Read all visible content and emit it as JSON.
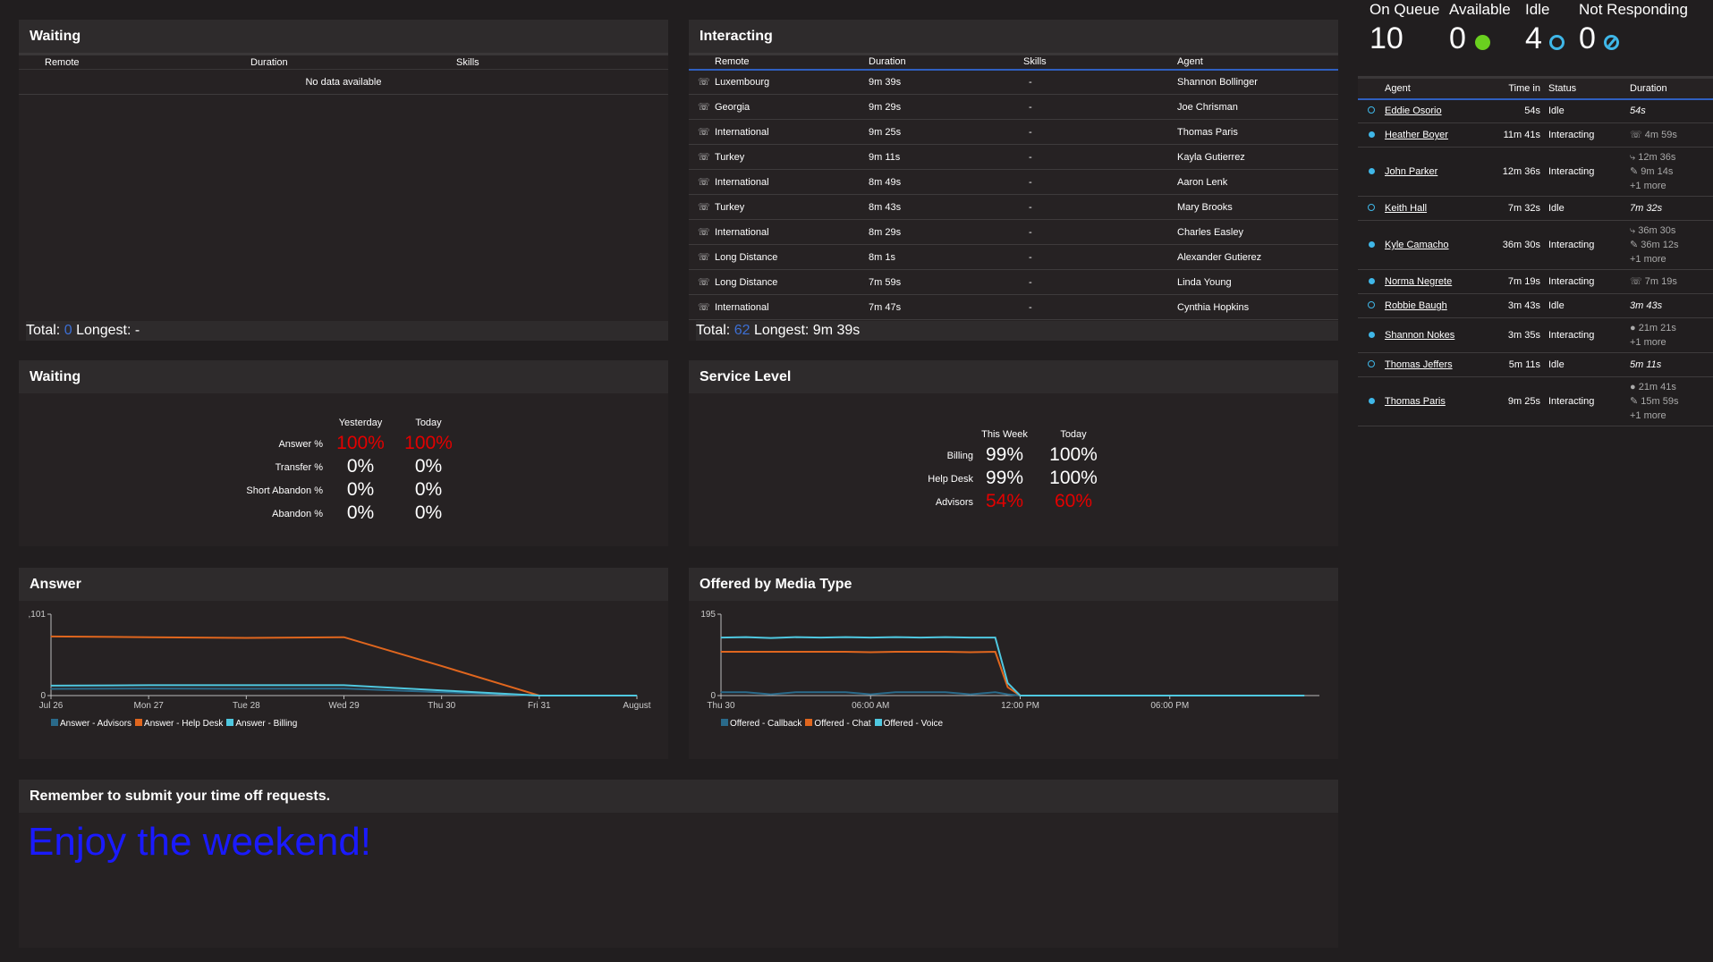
{
  "summary": {
    "on_queue_label": "On Queue",
    "on_queue": "10",
    "available_label": "Available",
    "available": "0",
    "idle_label": "Idle",
    "idle": "4",
    "not_responding_label": "Not Responding",
    "not_responding": "0",
    "colors": {
      "available": "#6ad01f",
      "idle": "#3fb7e8"
    }
  },
  "waiting": {
    "title": "Waiting",
    "columns": [
      "Remote",
      "Duration",
      "Skills"
    ],
    "empty": "No data available",
    "total_label": "Total:",
    "total": "0",
    "longest_label": "Longest:",
    "longest": "-"
  },
  "interacting": {
    "title": "Interacting",
    "columns": [
      "Remote",
      "Duration",
      "Skills",
      "Agent"
    ],
    "rows": [
      {
        "remote": "Luxembourg",
        "duration": "9m 39s",
        "skills": "-",
        "agent": "Shannon Bollinger"
      },
      {
        "remote": "Georgia",
        "duration": "9m 29s",
        "skills": "-",
        "agent": "Joe Chrisman"
      },
      {
        "remote": "International",
        "duration": "9m 25s",
        "skills": "-",
        "agent": "Thomas Paris"
      },
      {
        "remote": "Turkey",
        "duration": "9m 11s",
        "skills": "-",
        "agent": "Kayla Gutierrez"
      },
      {
        "remote": "International",
        "duration": "8m 49s",
        "skills": "-",
        "agent": "Aaron Lenk"
      },
      {
        "remote": "Turkey",
        "duration": "8m 43s",
        "skills": "-",
        "agent": "Mary Brooks"
      },
      {
        "remote": "International",
        "duration": "8m 29s",
        "skills": "-",
        "agent": "Charles Easley"
      },
      {
        "remote": "Long Distance",
        "duration": "8m 1s",
        "skills": "-",
        "agent": "Alexander Gutierez"
      },
      {
        "remote": "Long Distance",
        "duration": "7m 59s",
        "skills": "-",
        "agent": "Linda Young"
      },
      {
        "remote": "International",
        "duration": "7m 47s",
        "skills": "-",
        "agent": "Cynthia Hopkins"
      }
    ],
    "total_label": "Total:",
    "total": "62",
    "longest_label": "Longest:",
    "longest": "9m 39s"
  },
  "waiting_stats": {
    "title": "Waiting",
    "columns": [
      "Yesterday",
      "Today"
    ],
    "rows": [
      {
        "label": "Answer %",
        "yesterday": "100%",
        "today": "100%",
        "alert": true
      },
      {
        "label": "Transfer %",
        "yesterday": "0%",
        "today": "0%",
        "alert": false
      },
      {
        "label": "Short Abandon %",
        "yesterday": "0%",
        "today": "0%",
        "alert": false
      },
      {
        "label": "Abandon %",
        "yesterday": "0%",
        "today": "0%",
        "alert": false
      }
    ]
  },
  "service_level": {
    "title": "Service Level",
    "columns": [
      "This Week",
      "Today"
    ],
    "rows": [
      {
        "label": "Billing",
        "week": "99%",
        "today": "100%",
        "alert": false
      },
      {
        "label": "Help Desk",
        "week": "99%",
        "today": "100%",
        "alert": false
      },
      {
        "label": "Advisors",
        "week": "54%",
        "today": "60%",
        "alert": true
      }
    ]
  },
  "agents": {
    "columns": [
      "Agent",
      "Time in",
      "Status",
      "Duration"
    ],
    "rows": [
      {
        "name": "Eddie Osorio",
        "time": "54s",
        "status": "Idle",
        "durations": [
          "54s"
        ]
      },
      {
        "name": "Heather Boyer",
        "time": "11m 41s",
        "status": "Interacting",
        "durations": [
          "☏ 4m 59s"
        ]
      },
      {
        "name": "John Parker",
        "time": "12m 36s",
        "status": "Interacting",
        "durations": [
          "⤷ 12m 36s",
          "✎ 9m 14s",
          "+1 more"
        ]
      },
      {
        "name": "Keith Hall",
        "time": "7m 32s",
        "status": "Idle",
        "durations": [
          "7m 32s"
        ]
      },
      {
        "name": "Kyle Camacho",
        "time": "36m 30s",
        "status": "Interacting",
        "durations": [
          "⤷ 36m 30s",
          "✎ 36m 12s",
          "+1 more"
        ]
      },
      {
        "name": "Norma Negrete",
        "time": "7m 19s",
        "status": "Interacting",
        "durations": [
          "☏ 7m 19s"
        ]
      },
      {
        "name": "Robbie Baugh",
        "time": "3m 43s",
        "status": "Idle",
        "durations": [
          "3m 43s"
        ]
      },
      {
        "name": "Shannon Nokes",
        "time": "3m 35s",
        "status": "Interacting",
        "durations": [
          "● 21m 21s",
          "+1 more"
        ]
      },
      {
        "name": "Thomas Jeffers",
        "time": "5m 11s",
        "status": "Idle",
        "durations": [
          "5m 11s"
        ]
      },
      {
        "name": "Thomas Paris",
        "time": "9m 25s",
        "status": "Interacting",
        "durations": [
          "● 21m 41s",
          "✎ 15m 59s",
          "+1 more"
        ]
      }
    ]
  },
  "banner": {
    "title": "Remember to submit your time off requests.",
    "message": "Enjoy the weekend!",
    "message_color": "#1a1aff"
  },
  "chart_data": [
    {
      "title": "Answer",
      "type": "line",
      "x": [
        "Jul 26",
        "Mon 27",
        "Tue 28",
        "Wed 29",
        "Thu 30",
        "Fri 31",
        "August"
      ],
      "ylim": [
        0,
        1101
      ],
      "yticks": [
        ",101",
        "0"
      ],
      "series": [
        {
          "name": "Answer - Advisors",
          "color": "#2a6a8a",
          "values": [
            90,
            95,
            92,
            95,
            45,
            0,
            0
          ]
        },
        {
          "name": "Answer - Help Desk",
          "color": "#e0661e",
          "values": [
            800,
            790,
            780,
            790,
            400,
            0,
            0
          ]
        },
        {
          "name": "Answer - Billing",
          "color": "#4fc8e0",
          "values": [
            135,
            140,
            140,
            140,
            70,
            0,
            0
          ]
        }
      ]
    },
    {
      "title": "Offered by Media Type",
      "type": "line",
      "xticks": [
        "Thu 30",
        "06:00 AM",
        "12:00 PM",
        "06:00 PM"
      ],
      "x": [
        0,
        1,
        2,
        3,
        4,
        5,
        6,
        7,
        8,
        9,
        10,
        11,
        11.5,
        12,
        13,
        14,
        15,
        16,
        17,
        18,
        19,
        20,
        21,
        22,
        23.4
      ],
      "xlim": [
        0,
        24
      ],
      "ylim": [
        0,
        195
      ],
      "yticks": [
        "195",
        "0"
      ],
      "series": [
        {
          "name": "Offered - Callback",
          "color": "#2a6a8a",
          "values": [
            8,
            8,
            3,
            8,
            8,
            8,
            3,
            8,
            8,
            8,
            3,
            8,
            3,
            0,
            0,
            0,
            0,
            0,
            0,
            0,
            0,
            0,
            0,
            0,
            0
          ]
        },
        {
          "name": "Offered - Chat",
          "color": "#e0661e",
          "values": [
            105,
            105,
            105,
            105,
            105,
            105,
            104,
            105,
            105,
            105,
            104,
            105,
            20,
            0,
            0,
            0,
            0,
            0,
            0,
            0,
            0,
            0,
            0,
            0,
            0
          ]
        },
        {
          "name": "Offered - Voice",
          "color": "#4fc8e0",
          "values": [
            139,
            140,
            138,
            140,
            139,
            140,
            139,
            140,
            139,
            140,
            139,
            139,
            30,
            0,
            0,
            0,
            0,
            0,
            0,
            0,
            0,
            0,
            0,
            0,
            0
          ]
        }
      ]
    }
  ]
}
